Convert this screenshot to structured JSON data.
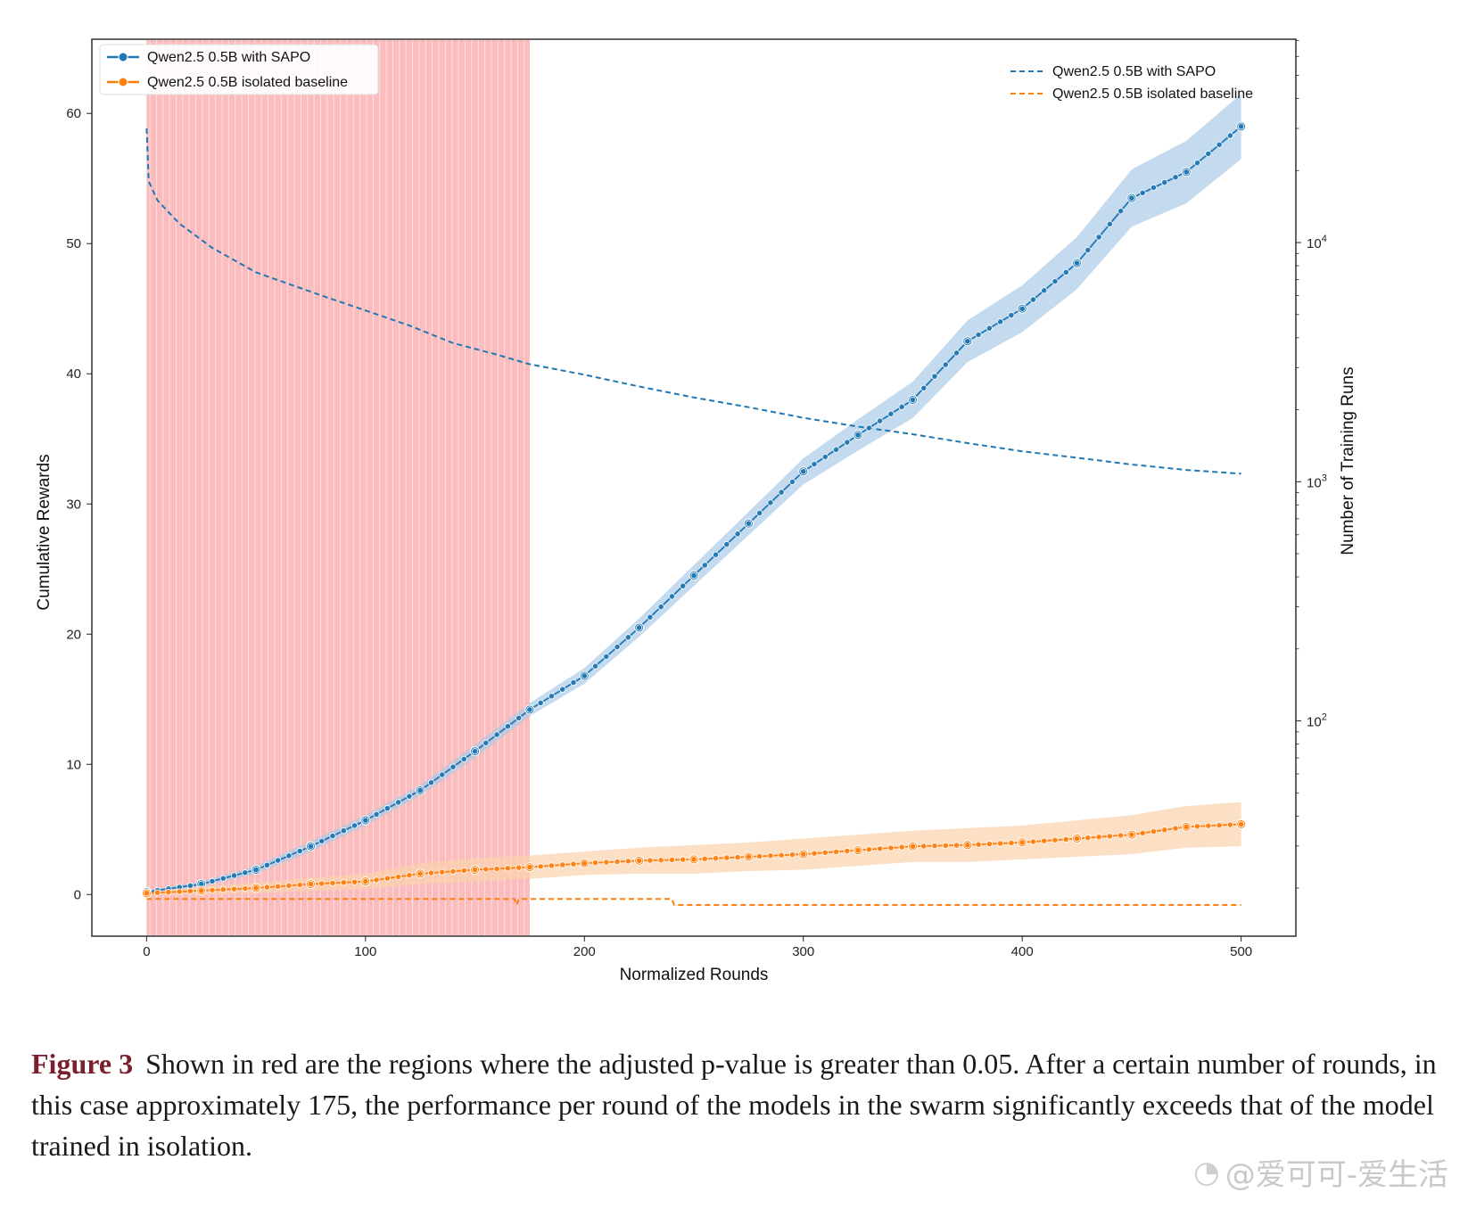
{
  "chart_data": {
    "type": "line",
    "xlabel": "Normalized Rounds",
    "ylabel_left": "Cumulative Rewards",
    "ylabel_right": "Number of Training Runs",
    "xlim": [
      -25,
      525
    ],
    "ylim_left": [
      -3.2,
      65.7
    ],
    "ylim_right_log10": [
      1.1,
      4.85
    ],
    "x_ticks": [
      0,
      100,
      200,
      300,
      400,
      500
    ],
    "y_ticks_left": [
      0,
      10,
      20,
      30,
      40,
      50,
      60
    ],
    "y_ticks_right": [
      {
        "base": "10",
        "exp": "2",
        "value": 100
      },
      {
        "base": "10",
        "exp": "3",
        "value": 1000
      },
      {
        "base": "10",
        "exp": "4",
        "value": 10000
      }
    ],
    "right_scale": "log",
    "shaded_region": {
      "x_start": 0,
      "x_end": 175,
      "color": "#f8a5a5"
    },
    "legend_left": {
      "placement": "top-left",
      "entries": [
        "Qwen2.5 0.5B with SAPO",
        "Qwen2.5 0.5B isolated baseline"
      ]
    },
    "legend_right": {
      "placement": "top-right",
      "entries": [
        "Qwen2.5 0.5B with SAPO",
        "Qwen2.5 0.5B isolated baseline"
      ]
    },
    "series": [
      {
        "name": "Qwen2.5 0.5B with SAPO",
        "axis": "left",
        "style": "solid-markers",
        "color": "#1f77b4",
        "band_color": "#a9cbe8",
        "x": [
          0,
          25,
          50,
          75,
          100,
          125,
          150,
          175,
          200,
          225,
          250,
          275,
          300,
          325,
          350,
          375,
          400,
          425,
          450,
          475,
          500
        ],
        "y": [
          0.2,
          0.8,
          1.9,
          3.7,
          5.7,
          8.0,
          11.0,
          14.2,
          16.8,
          20.5,
          24.5,
          28.5,
          32.5,
          35.3,
          38.0,
          42.5,
          45.0,
          48.5,
          53.5,
          55.5,
          59.0
        ],
        "band": [
          0.1,
          0.2,
          0.3,
          0.4,
          0.4,
          0.4,
          0.5,
          0.5,
          0.6,
          0.7,
          0.8,
          0.9,
          1.0,
          1.2,
          1.4,
          1.6,
          1.8,
          2.0,
          2.2,
          2.4,
          2.5
        ]
      },
      {
        "name": "Qwen2.5 0.5B isolated baseline",
        "axis": "left",
        "style": "solid-markers",
        "color": "#ff7f0e",
        "band_color": "#fbd3ad",
        "x": [
          0,
          25,
          50,
          75,
          100,
          125,
          150,
          175,
          200,
          225,
          250,
          275,
          300,
          325,
          350,
          375,
          400,
          425,
          450,
          475,
          500
        ],
        "y": [
          0.1,
          0.3,
          0.5,
          0.8,
          1.0,
          1.6,
          1.9,
          2.1,
          2.4,
          2.6,
          2.7,
          2.9,
          3.1,
          3.4,
          3.7,
          3.8,
          4.0,
          4.3,
          4.6,
          5.2,
          5.4
        ],
        "band": [
          0.2,
          0.3,
          0.4,
          0.5,
          0.6,
          0.8,
          0.9,
          0.9,
          0.9,
          1.0,
          1.1,
          1.1,
          1.2,
          1.2,
          1.2,
          1.3,
          1.3,
          1.4,
          1.5,
          1.6,
          1.7
        ]
      },
      {
        "name": "Qwen2.5 0.5B with SAPO",
        "axis": "right",
        "style": "dashed",
        "color": "#1f77b4",
        "x": [
          0,
          1,
          5,
          15,
          30,
          50,
          80,
          100,
          120,
          140,
          160,
          175,
          200,
          225,
          250,
          275,
          300,
          325,
          350,
          375,
          400,
          425,
          450,
          475,
          500
        ],
        "y": [
          30000,
          18000,
          15000,
          12000,
          9500,
          7500,
          6000,
          5200,
          4500,
          3800,
          3400,
          3100,
          2800,
          2500,
          2250,
          2050,
          1850,
          1700,
          1580,
          1450,
          1340,
          1260,
          1180,
          1120,
          1080
        ]
      },
      {
        "name": "Qwen2.5 0.5B isolated baseline",
        "axis": "right",
        "style": "dashed",
        "color": "#ff7f0e",
        "x": [
          0,
          168,
          169,
          170,
          171,
          240,
          241,
          500
        ],
        "y": [
          18,
          18,
          17,
          18,
          18,
          18,
          17,
          17
        ]
      }
    ]
  },
  "caption": {
    "label": "Figure 3",
    "text": "Shown in red are the regions where the adjusted p-value is greater than 0.05. After a certain number of rounds, in this case approximately 175, the performance per round of the models in the swarm significantly exceeds that of the model trained in isolation."
  },
  "watermark": {
    "icon": "weibo-icon",
    "text": "@爱可可-爱生活"
  }
}
